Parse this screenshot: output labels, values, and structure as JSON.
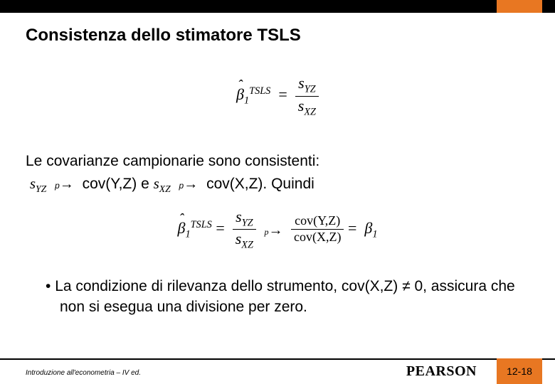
{
  "accent_color": "#e87722",
  "title": "Consistenza dello stimatore TSLS",
  "eq1": {
    "left": "β̂₁",
    "sup": "TSLS",
    "eq": "=",
    "num": "s_YZ",
    "den": "s_XZ"
  },
  "covariance_line1": "Le covarianze campionarie sono consistenti:",
  "covariance_line2_parts": {
    "s_yz": "s",
    "s_yz_sub": "YZ",
    "cov_yz": "cov(Y,Z)",
    "e": " e ",
    "s_xz": "s",
    "s_xz_sub": "XZ",
    "cov_xz": "cov(X,Z).",
    "quindi": "  Quindi"
  },
  "eq2": {
    "beta_hat": "β̂₁",
    "sup": "TSLS",
    "eq1": "=",
    "num1": "s_YZ",
    "den1": "s_XZ",
    "conv": "p",
    "num2": "cov(Y,Z)",
    "den2": "cov(X,Z)",
    "eq2": "=",
    "beta": "β₁"
  },
  "bullet_text": "La condizione di rilevanza dello strumento, cov(X,Z) ≠ 0, assicura che non si esegua una divisione per zero.",
  "footer_text": "Introduzione all'econometria – IV ed.",
  "publisher": "PEARSON",
  "page_number": "12-18"
}
